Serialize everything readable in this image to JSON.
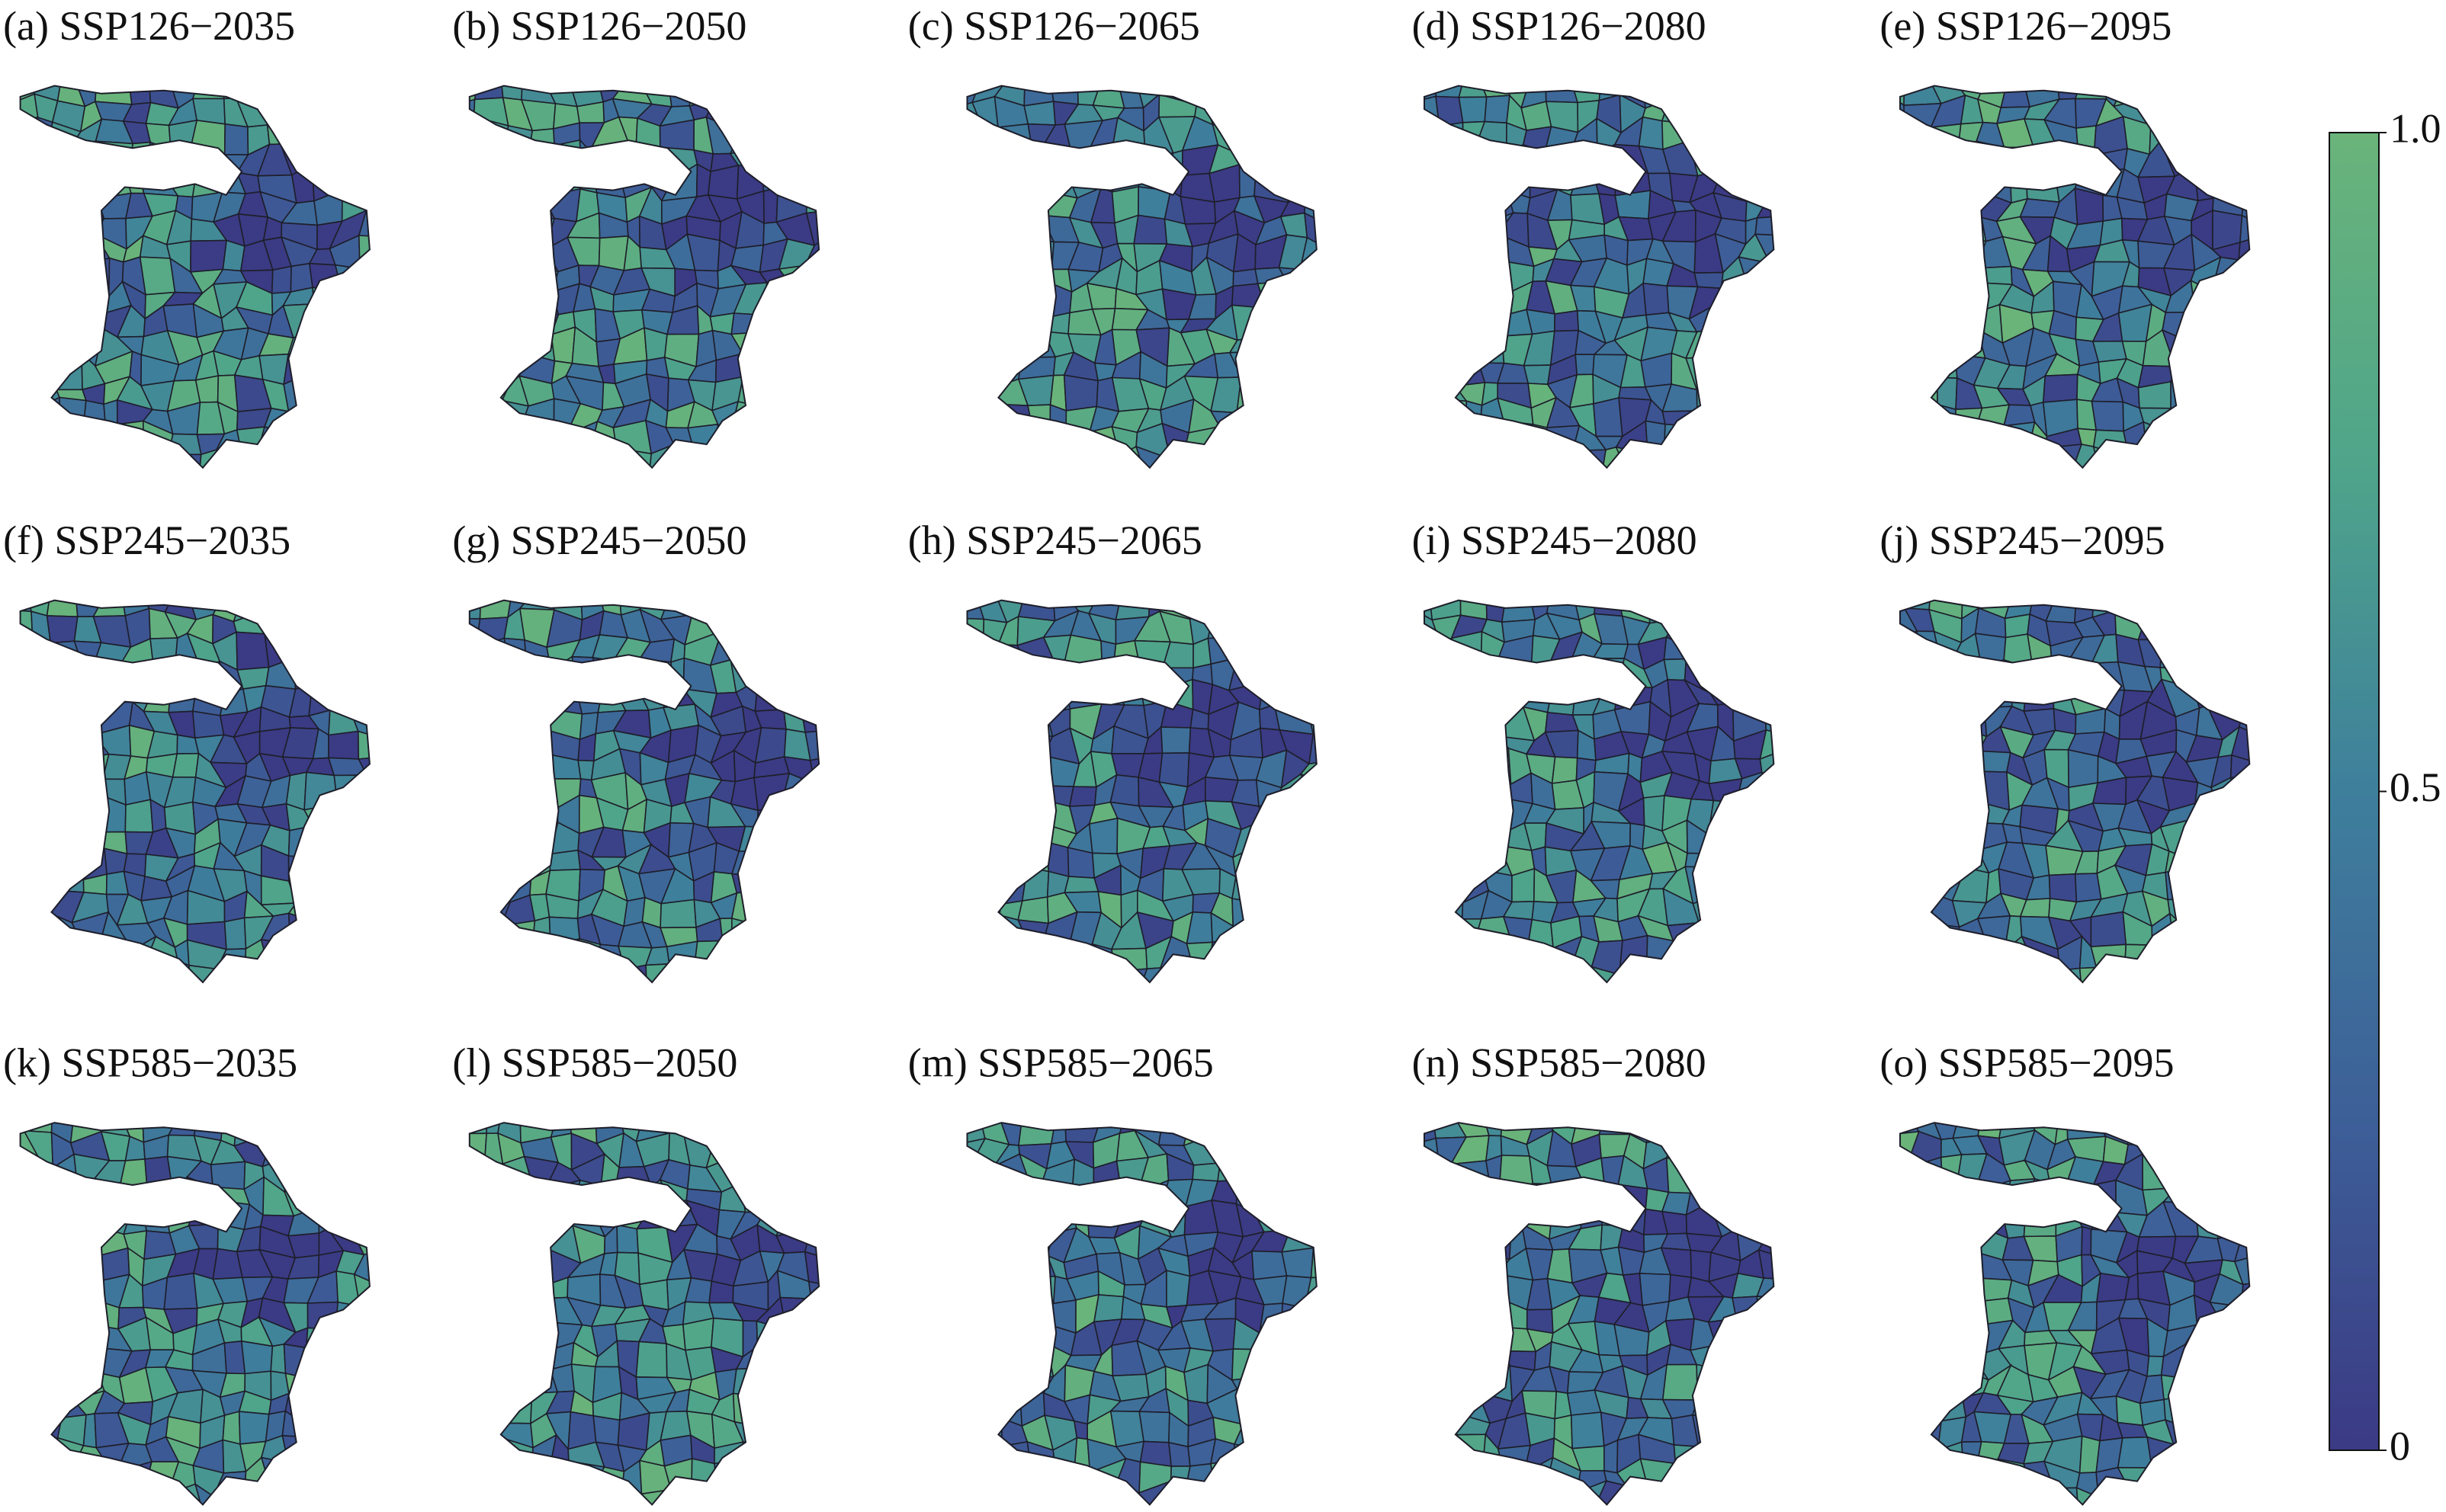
{
  "panels": [
    {
      "title": "(a) SSP126−2035"
    },
    {
      "title": "(b) SSP126−2050"
    },
    {
      "title": "(c) SSP126−2065"
    },
    {
      "title": "(d) SSP126−2080"
    },
    {
      "title": "(e) SSP126−2095"
    },
    {
      "title": "(f) SSP245−2035"
    },
    {
      "title": "(g) SSP245−2050"
    },
    {
      "title": "(h) SSP245−2065"
    },
    {
      "title": "(i) SSP245−2080"
    },
    {
      "title": "(j) SSP245−2095"
    },
    {
      "title": "(k) SSP585−2035"
    },
    {
      "title": "(l) SSP585−2050"
    },
    {
      "title": "(m) SSP585−2065"
    },
    {
      "title": "(n) SSP585−2080"
    },
    {
      "title": "(o) SSP585−2095"
    }
  ],
  "colorbar": {
    "lim": [
      0,
      1
    ],
    "ticks": [
      0,
      0.5,
      {
        "value": 1,
        "label": "1.0"
      }
    ],
    "colors": [
      "#3b3a84",
      "#3d5f98",
      "#3e7f9c",
      "#4fa58a",
      "#6ab47a"
    ]
  }
}
